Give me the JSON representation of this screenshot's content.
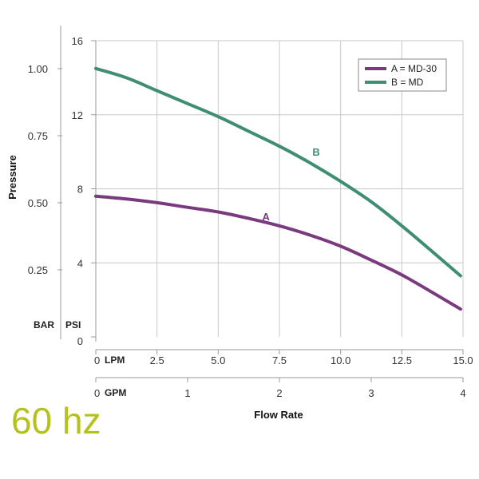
{
  "frequency_label": "60 hz",
  "colors": {
    "series_a": "#7a3a7e",
    "series_b": "#3f8d73",
    "frequency": "#b5c21b",
    "grid": "#c8c8c8"
  },
  "chart_data": {
    "type": "line",
    "xlabel": "Flow Rate",
    "ylabel": "Pressure",
    "grid": true,
    "legend_position": "top-right",
    "x_units": {
      "primary": "LPM",
      "secondary": "GPM"
    },
    "y_units": {
      "primary": "PSI",
      "secondary": "BAR"
    },
    "xlim": [
      0,
      15
    ],
    "ylim": [
      0,
      16
    ],
    "x_ticks_lpm": [
      "0",
      "2.5",
      "5.0",
      "7.5",
      "10.0",
      "12.5",
      "15.0"
    ],
    "x_ticks_gpm": [
      {
        "value": 0,
        "label": "0"
      },
      {
        "value": 1,
        "label": "1"
      },
      {
        "value": 2,
        "label": "2"
      },
      {
        "value": 3,
        "label": "3"
      },
      {
        "value": 4,
        "label": "4"
      }
    ],
    "y_ticks_psi": [
      {
        "value": 0,
        "label": "0"
      },
      {
        "value": 4,
        "label": "4"
      },
      {
        "value": 8,
        "label": "8"
      },
      {
        "value": 12,
        "label": "12"
      },
      {
        "value": 16,
        "label": "16"
      }
    ],
    "y_ticks_bar": [
      {
        "value": 0.25,
        "label": "0.25"
      },
      {
        "value": 0.5,
        "label": "0.50"
      },
      {
        "value": 0.75,
        "label": "0.75"
      },
      {
        "value": 1.0,
        "label": "1.00"
      }
    ],
    "series": [
      {
        "name": "A = MD-30",
        "curve_label": "A",
        "label_at": [
          6.8,
          6.3
        ],
        "points": [
          [
            0,
            7.6
          ],
          [
            1.25,
            7.45
          ],
          [
            2.5,
            7.25
          ],
          [
            3.75,
            7.0
          ],
          [
            5.0,
            6.75
          ],
          [
            6.25,
            6.4
          ],
          [
            7.5,
            6.0
          ],
          [
            8.75,
            5.5
          ],
          [
            10.0,
            4.9
          ],
          [
            11.25,
            4.15
          ],
          [
            12.5,
            3.35
          ],
          [
            13.75,
            2.4
          ],
          [
            14.9,
            1.5
          ]
        ]
      },
      {
        "name": "B = MD",
        "curve_label": "B",
        "label_at": [
          8.85,
          9.8
        ],
        "points": [
          [
            0,
            14.5
          ],
          [
            1.25,
            14.0
          ],
          [
            2.5,
            13.3
          ],
          [
            3.75,
            12.6
          ],
          [
            5.0,
            11.9
          ],
          [
            6.25,
            11.1
          ],
          [
            7.5,
            10.3
          ],
          [
            8.75,
            9.4
          ],
          [
            10.0,
            8.4
          ],
          [
            11.25,
            7.3
          ],
          [
            12.5,
            6.0
          ],
          [
            13.75,
            4.6
          ],
          [
            14.9,
            3.3
          ]
        ]
      }
    ]
  }
}
